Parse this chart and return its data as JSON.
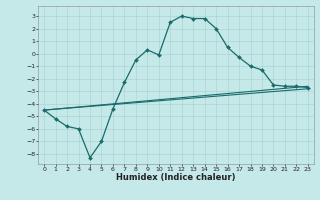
{
  "xlabel": "Humidex (Indice chaleur)",
  "bg_color": "#c5e8e8",
  "grid_color": "#aacfcf",
  "line_color": "#1a6b6b",
  "xlim": [
    -0.5,
    23.5
  ],
  "ylim": [
    -8.8,
    3.8
  ],
  "yticks": [
    3,
    2,
    1,
    0,
    -1,
    -2,
    -3,
    -4,
    -5,
    -6,
    -7,
    -8
  ],
  "xticks": [
    0,
    1,
    2,
    3,
    4,
    5,
    6,
    7,
    8,
    9,
    10,
    11,
    12,
    13,
    14,
    15,
    16,
    17,
    18,
    19,
    20,
    21,
    22,
    23
  ],
  "curve1_x": [
    0,
    1,
    2,
    3,
    4,
    5,
    6,
    7,
    8,
    9,
    10,
    11,
    12,
    13,
    14,
    15,
    16,
    17,
    18,
    19,
    20,
    21,
    22,
    23
  ],
  "curve1_y": [
    -4.5,
    -5.2,
    -5.8,
    -6.0,
    -8.3,
    -7.0,
    -4.4,
    -2.3,
    -0.5,
    0.3,
    -0.1,
    2.5,
    3.0,
    2.8,
    2.8,
    2.0,
    0.5,
    -0.3,
    -1.0,
    -1.3,
    -2.5,
    -2.6,
    -2.6,
    -2.7
  ],
  "curve2_x": [
    0,
    23
  ],
  "curve2_y": [
    -4.5,
    -2.6
  ],
  "curve3_x": [
    0,
    23
  ],
  "curve3_y": [
    -4.5,
    -2.8
  ],
  "marker_size": 2.0,
  "tick_fontsize": 4.5,
  "xlabel_fontsize": 6.0,
  "linewidth1": 0.9,
  "linewidth2": 0.8
}
